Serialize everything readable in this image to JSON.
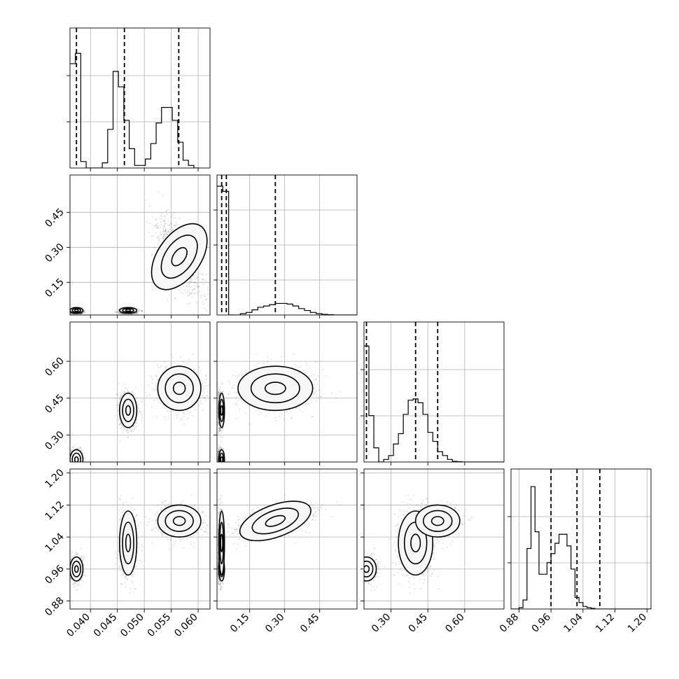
{
  "chart_data": {
    "type": "corner",
    "grid": true,
    "parameters": [
      {
        "id": "p0",
        "range": [
          0.0362,
          0.0622
        ],
        "ticks": [
          0.04,
          0.045,
          0.05,
          0.055,
          0.06
        ],
        "tick_labels": [
          "0.040",
          "0.045",
          "0.050",
          "0.055",
          "0.060"
        ],
        "quantiles": [
          0.0374,
          0.0463,
          0.0564
        ],
        "hist_y_ticks": [
          0.33,
          0.66
        ],
        "histogram": {
          "bin_start": 0.0362,
          "bin_width": 0.001,
          "counts": [
            0.81,
            0.89,
            0.05,
            0,
            0,
            0,
            0.04,
            0.3,
            0.75,
            0.63,
            0.37,
            0.15,
            0.02,
            0.02,
            0.07,
            0.19,
            0.35,
            0.47,
            0.47,
            0.37,
            0.2,
            0.06,
            0.02,
            0
          ]
        }
      },
      {
        "id": "p1",
        "range": [
          0.01,
          0.61
        ],
        "ticks": [
          0.15,
          0.3,
          0.45
        ],
        "tick_labels": [
          "0.15",
          "0.30",
          "0.45"
        ],
        "quantiles": [
          0.03,
          0.05,
          0.26
        ],
        "hist_y_ticks": [
          0.25,
          0.5,
          0.75
        ],
        "histogram": {
          "bin_start": 0.01,
          "bin_width": 0.025,
          "counts": [
            1.0,
            0.96,
            0,
            0,
            0.01,
            0.02,
            0.04,
            0.06,
            0.07,
            0.08,
            0.09,
            0.09,
            0.085,
            0.07,
            0.05,
            0.035,
            0.02,
            0.01,
            0.005,
            0.002,
            0,
            0,
            0,
            0
          ]
        }
      },
      {
        "id": "p2",
        "range": [
          0.19,
          0.76
        ],
        "ticks": [
          0.3,
          0.45,
          0.6
        ],
        "tick_labels": [
          "0.30",
          "0.45",
          "0.60"
        ],
        "quantiles": [
          0.2,
          0.4,
          0.49
        ],
        "hist_y_ticks": [
          0.33,
          0.66
        ],
        "histogram": {
          "bin_start": 0.19,
          "bin_width": 0.02,
          "counts": [
            0.9,
            0.36,
            0.11,
            0,
            0.02,
            0.05,
            0.14,
            0.22,
            0.37,
            0.48,
            0.49,
            0.46,
            0.37,
            0.23,
            0.16,
            0.08,
            0.05,
            0.02,
            0.005,
            0.002,
            0,
            0,
            0,
            0,
            0,
            0,
            0,
            0,
            0
          ]
        }
      },
      {
        "id": "p3",
        "range": [
          0.86,
          1.21
        ],
        "ticks": [
          0.88,
          0.96,
          1.04,
          1.12,
          1.2
        ],
        "tick_labels": [
          "0.88",
          "0.96",
          "1.04",
          "1.12",
          "1.20"
        ],
        "quantiles": [
          0.96,
          1.025,
          1.082
        ],
        "hist_y_ticks": [
          0.33,
          0.66
        ],
        "histogram": {
          "bin_start": 0.86,
          "bin_width": 0.01,
          "counts": [
            0,
            0,
            0.01,
            0.07,
            0.47,
            0.95,
            0.6,
            0.27,
            0.27,
            0.36,
            0.43,
            0.51,
            0.58,
            0.58,
            0.49,
            0.31,
            0.09,
            0.05,
            0.02,
            0.01,
            0.005,
            0,
            0,
            0,
            0,
            0,
            0,
            0,
            0,
            0,
            0,
            0,
            0,
            0,
            0
          ]
        }
      }
    ],
    "clusters": [
      {
        "mean": [
          0.0374,
          0.03,
          0.2,
          0.96
        ],
        "sd": [
          0.0006,
          0.006,
          0.02,
          0.015
        ],
        "weight": 0.33
      },
      {
        "mean": [
          0.047,
          0.03,
          0.4,
          1.025
        ],
        "sd": [
          0.0008,
          0.006,
          0.035,
          0.04
        ],
        "weight": 0.33
      },
      {
        "mean": [
          0.0565,
          0.26,
          0.49,
          1.08
        ],
        "sd": [
          0.002,
          0.08,
          0.045,
          0.02
        ],
        "weight": 0.34
      }
    ],
    "colors": {
      "line": "#000000",
      "grid": "#b0b0b0",
      "contour_fill": "#f7f7f7",
      "points": "#333333"
    }
  }
}
